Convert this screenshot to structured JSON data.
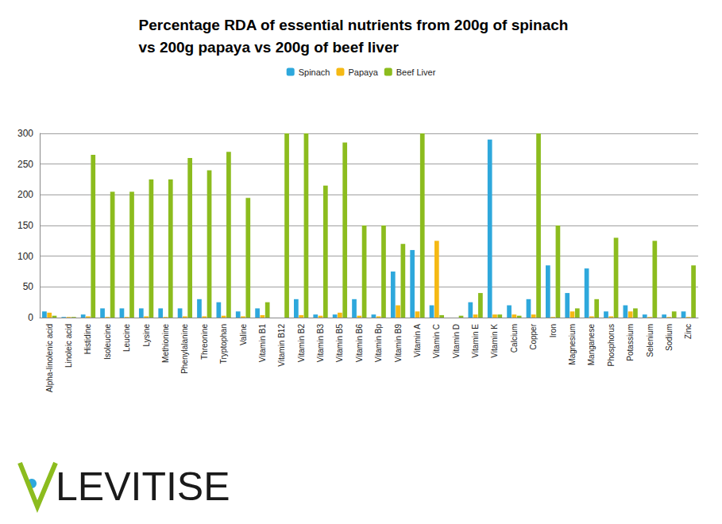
{
  "chart_data": {
    "type": "bar",
    "title": "Percentage RDA of essential nutrients from 200g of spinach vs 200g papaya vs 200g of beef liver",
    "annotations": [
      "LEVITISE"
    ],
    "categories": [
      "Alpha-linolenic acid",
      "Linoleic acid",
      "Histidine",
      "Isoleucine",
      "Leucine",
      "Lysine",
      "Methionine",
      "Phenylalanine",
      "Threonine",
      "Tryptophan",
      "Valine",
      "Vitamin B1",
      "Vitamin B12",
      "Vitamin B2",
      "Vitamin B3",
      "Vitamin B5",
      "Vitamin B6",
      "Vitamin Bp",
      "Vitamin B9",
      "Vitamin A",
      "Vitamin C",
      "Vitamin D",
      "Vitamin E",
      "Vitamin K",
      "Calcium",
      "Copper",
      "Iron",
      "Magnesium",
      "Manganese",
      "Phosphorus",
      "Potassium",
      "Selenium",
      "Sodium",
      "Zinc"
    ],
    "series": [
      {
        "name": "Spinach",
        "color": "#2ea8dc",
        "values": [
          10,
          1,
          5,
          15,
          15,
          15,
          15,
          15,
          30,
          25,
          10,
          15,
          0,
          30,
          5,
          5,
          30,
          5,
          75,
          110,
          20,
          0,
          25,
          290,
          20,
          30,
          85,
          40,
          80,
          10,
          20,
          5,
          5,
          10
        ]
      },
      {
        "name": "Papaya",
        "color": "#f5b914",
        "values": [
          8,
          1,
          2,
          1,
          1,
          2,
          1,
          2,
          2,
          3,
          2,
          4,
          0,
          4,
          3,
          8,
          3,
          2,
          20,
          10,
          125,
          0,
          5,
          5,
          5,
          5,
          1,
          10,
          2,
          2,
          10,
          1,
          1,
          1
        ]
      },
      {
        "name": "Beef Liver",
        "color": "#8cbc1e",
        "values": [
          3,
          1,
          265,
          205,
          205,
          225,
          225,
          260,
          240,
          270,
          195,
          25,
          300,
          300,
          215,
          285,
          150,
          150,
          120,
          300,
          4,
          3,
          40,
          5,
          3,
          300,
          150,
          15,
          30,
          130,
          15,
          125,
          10,
          85
        ]
      }
    ],
    "ylim": [
      0,
      300
    ],
    "yticks": [
      0,
      50,
      100,
      150,
      200,
      250,
      300
    ],
    "grid": true,
    "legend": "top"
  }
}
